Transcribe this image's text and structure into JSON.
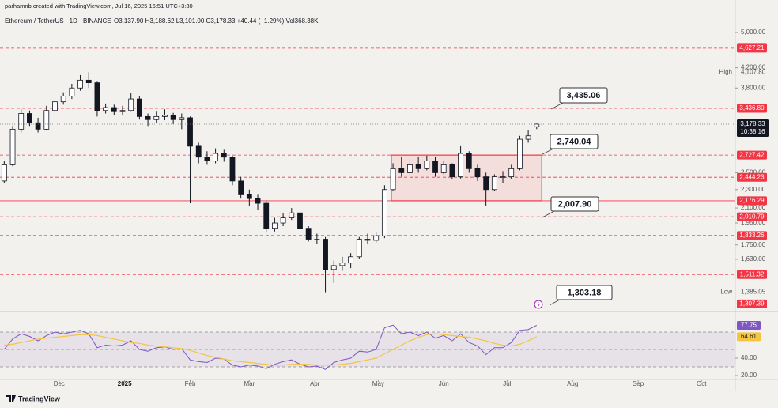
{
  "header": "parhamnb created with TradingView.com, Jul 16, 2025 16:51 UTC+3:30",
  "footer_logo": "TradingView",
  "chart_data": [
    {
      "type": "candlestick",
      "title": "Ethereum / TetherUS · 1D · BINANCE",
      "legend_values": "O3,137.90 H3,188.62 L3,101.00 C3,178.33 +40.44 (+1.29%) Vol368.38K",
      "log_scale": true,
      "ylim": [
        1264,
        5644
      ],
      "yticks": [
        {
          "value": 5000,
          "label": "5,000.00"
        },
        {
          "value": 4200,
          "label": "4,200.00"
        },
        {
          "value": 3800,
          "label": "3,800.00"
        },
        {
          "value": 2500,
          "label": "2,500.00"
        },
        {
          "value": 2300,
          "label": "2,300.00"
        },
        {
          "value": 2100,
          "label": "2,100.00"
        },
        {
          "value": 1950,
          "label": "1,950.00"
        },
        {
          "value": 1750,
          "label": "1,750.00"
        },
        {
          "value": 1630,
          "label": "1,630.00"
        }
      ],
      "xlim": [
        -0.5,
        86.5
      ],
      "xticks": [
        {
          "value": 6.5,
          "label": "Dec"
        },
        {
          "value": 14.25,
          "label": "2025"
        },
        {
          "value": 22,
          "label": "Feb"
        },
        {
          "value": 29,
          "label": "Mar"
        },
        {
          "value": 36.75,
          "label": "Apr"
        },
        {
          "value": 44.25,
          "label": "May"
        },
        {
          "value": 52,
          "label": "Jun"
        },
        {
          "value": 59.5,
          "label": "Jul"
        },
        {
          "value": 67.25,
          "label": "Aug"
        },
        {
          "value": 75,
          "label": "Sep"
        },
        {
          "value": 82.5,
          "label": "Oct"
        }
      ],
      "open": [
        2400,
        2600,
        3100,
        3350,
        3200,
        3100,
        3400,
        3550,
        3650,
        3800,
        3950,
        3900,
        3400,
        3450,
        3380,
        3400,
        3600,
        3300,
        3250,
        3300,
        3320,
        3250,
        3280,
        2850,
        2700,
        2650,
        2750,
        2700,
        2400,
        2250,
        2200,
        2150,
        1900,
        1950,
        2000,
        2050,
        1900,
        1800,
        1800,
        1550,
        1580,
        1600,
        1650,
        1800,
        1790,
        1830,
        2300,
        2550,
        2500,
        2600,
        2550,
        2650,
        2500,
        2600,
        2450,
        2750,
        2550,
        2450,
        2300,
        2450,
        2450,
        2550,
        2950,
        3137.9
      ],
      "high": [
        2650,
        3150,
        3420,
        3400,
        3280,
        3480,
        3620,
        3720,
        3880,
        4050,
        4107.8,
        3920,
        3520,
        3500,
        3480,
        3700,
        3650,
        3350,
        3380,
        3420,
        3360,
        3350,
        3300,
        2900,
        2780,
        2820,
        2800,
        2720,
        2450,
        2300,
        2250,
        2180,
        2000,
        2050,
        2100,
        2080,
        1920,
        1850,
        1820,
        1620,
        1650,
        1680,
        1820,
        1850,
        1860,
        2350,
        2620,
        2700,
        2680,
        2700,
        2720,
        2700,
        2650,
        2620,
        2850,
        2780,
        2600,
        2500,
        2480,
        2520,
        2600,
        3000,
        3080,
        3188.62
      ],
      "low": [
        2380,
        2580,
        3050,
        3150,
        3050,
        3080,
        3350,
        3500,
        3600,
        3750,
        3800,
        3300,
        3350,
        3320,
        3330,
        3380,
        3250,
        3150,
        3200,
        3240,
        3180,
        3100,
        2150,
        2620,
        2600,
        2620,
        2640,
        2350,
        2200,
        2120,
        2080,
        1860,
        1870,
        1920,
        1980,
        1880,
        1780,
        1760,
        1385.05,
        1450,
        1540,
        1560,
        1630,
        1760,
        1770,
        1810,
        2280,
        2450,
        2480,
        2500,
        2530,
        2450,
        2480,
        2420,
        2430,
        2500,
        2400,
        2120,
        2280,
        2380,
        2420,
        2530,
        2900,
        3101
      ],
      "close": [
        2600,
        3100,
        3350,
        3200,
        3100,
        3400,
        3550,
        3650,
        3800,
        3950,
        3900,
        3400,
        3450,
        3380,
        3400,
        3600,
        3300,
        3250,
        3300,
        3320,
        3250,
        3280,
        2850,
        2700,
        2650,
        2750,
        2700,
        2400,
        2250,
        2200,
        2150,
        1900,
        1950,
        2000,
        2050,
        1900,
        1800,
        1800,
        1550,
        1580,
        1600,
        1650,
        1800,
        1790,
        1830,
        2300,
        2550,
        2500,
        2600,
        2550,
        2650,
        2500,
        2600,
        2450,
        2750,
        2550,
        2450,
        2300,
        2450,
        2450,
        2550,
        2950,
        3000,
        3178.33
      ],
      "up_color": "#ffffff",
      "down_color": "#131722",
      "last_price_label": "3,178.33",
      "countdown": "10:38:16",
      "high_marker": {
        "text": "High",
        "label": "4,107.80"
      },
      "low_marker": {
        "text": "Low",
        "label": "1,385.05"
      },
      "level_color": "#f23645",
      "levels": [
        {
          "value": 4627.21,
          "label": "4,627.21",
          "style": "dashed"
        },
        {
          "value": 3436.8,
          "label": "3,436.80",
          "style": "dashed"
        },
        {
          "value": 2727.42,
          "label": "2,727.42",
          "style": "dashed"
        },
        {
          "value": 2444.23,
          "label": "2,444.23",
          "style": "dashed"
        },
        {
          "value": 2176.29,
          "label": "2,176.29",
          "style": "solid"
        },
        {
          "value": 2010.79,
          "label": "2,010.79",
          "style": "dashed"
        },
        {
          "value": 1833.26,
          "label": "1,833.26",
          "style": "dashed"
        },
        {
          "value": 1511.32,
          "label": "1,511.32",
          "style": "dashed"
        },
        {
          "value": 1307.39,
          "label": "1,307.39",
          "style": "solid"
        }
      ],
      "annotations": [
        "3,435.06",
        "2,740.04",
        "2,007.90",
        "1,303.18"
      ]
    },
    {
      "type": "line",
      "ylim": [
        15.5,
        92.7
      ],
      "yticks": [
        {
          "value": 40,
          "label": "40.00"
        },
        {
          "value": 20,
          "label": "20.00"
        }
      ],
      "levels": [
        70,
        50,
        30
      ],
      "series": [
        {
          "color": "#7e57c2",
          "values": [
            50,
            62,
            68,
            65,
            60,
            66,
            70,
            68,
            70,
            72,
            68,
            52,
            55,
            54,
            55,
            60,
            50,
            48,
            52,
            53,
            50,
            51,
            38,
            36,
            35,
            40,
            39,
            32,
            30,
            32,
            31,
            28,
            33,
            36,
            38,
            33,
            30,
            31,
            27,
            35,
            38,
            40,
            48,
            47,
            50,
            75,
            78,
            68,
            70,
            66,
            70,
            63,
            66,
            60,
            68,
            58,
            54,
            44,
            52,
            52,
            58,
            72,
            73,
            77.75
          ]
        },
        {
          "color": "#f5c443",
          "values": [
            55,
            56,
            58,
            60,
            62,
            63,
            64,
            65,
            66,
            67,
            67,
            66,
            64,
            62,
            60,
            58,
            57,
            55,
            54,
            53,
            52,
            51,
            49,
            46,
            43,
            41,
            39,
            37,
            36,
            35,
            34,
            33,
            32,
            32,
            33,
            33,
            33,
            32,
            32,
            32,
            33,
            34,
            36,
            38,
            40,
            45,
            50,
            55,
            60,
            64,
            67,
            68,
            67,
            66,
            65,
            64,
            62,
            60,
            57,
            55,
            54,
            56,
            60,
            64.61
          ]
        }
      ]
    }
  ]
}
